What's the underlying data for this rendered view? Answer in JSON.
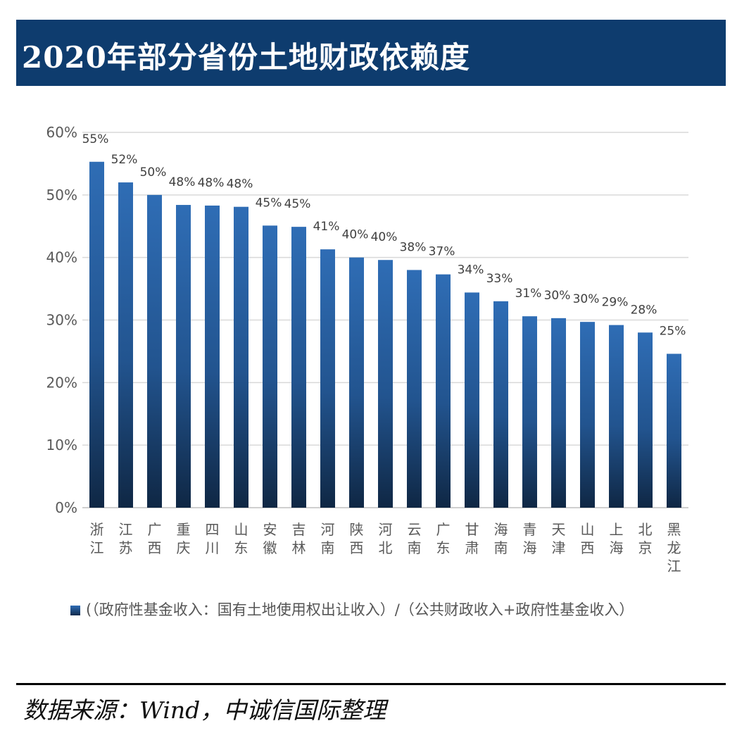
{
  "title": "2020年部分省份土地财政依赖度",
  "chart_data": {
    "type": "bar",
    "title": "2020年部分省份土地财政依赖度",
    "categories": [
      "浙江",
      "江苏",
      "广西",
      "重庆",
      "四川",
      "山东",
      "安徽",
      "吉林",
      "河南",
      "陕西",
      "河北",
      "云南",
      "广东",
      "甘肃",
      "海南",
      "青海",
      "天津",
      "山西",
      "上海",
      "北京",
      "黑龙江"
    ],
    "series": [
      {
        "name": "(（政府性基金收入：国有土地使用权出让收入）/（公共财政收入+政府性基金收入）",
        "values": [
          55.3,
          52.0,
          50.0,
          48.4,
          48.3,
          48.1,
          45.1,
          44.9,
          41.3,
          40.0,
          39.6,
          38.0,
          37.3,
          34.4,
          33.0,
          30.6,
          30.3,
          29.7,
          29.2,
          28.0,
          24.6
        ],
        "labels": [
          "55%",
          "52%",
          "50%",
          "48%",
          "48%",
          "48%",
          "45%",
          "45%",
          "41%",
          "40%",
          "40%",
          "38%",
          "37%",
          "34%",
          "33%",
          "31%",
          "30%",
          "30%",
          "29%",
          "28%",
          "25%"
        ]
      }
    ],
    "ylim": [
      0,
      60
    ],
    "yticks": [
      0,
      10,
      20,
      30,
      40,
      50,
      60
    ],
    "ytick_labels": [
      "0%",
      "10%",
      "20%",
      "30%",
      "40%",
      "50%",
      "60%"
    ],
    "xlabel": "",
    "ylabel": "",
    "grid": true,
    "legend_position": "bottom",
    "colors": {
      "bar_top": "#2f6db5",
      "bar_bottom": "#0f2744",
      "grid": "#d9d9d9",
      "axis": "#bfbfbf",
      "tick_text": "#595959"
    }
  },
  "legend": {
    "label": "(（政府性基金收入：国有土地使用权出让收入）/（公共财政收入+政府性基金收入）"
  },
  "source": "数据来源：Wind，中诚信国际整理",
  "colors": {
    "title_bg": "#0e3c6e",
    "title_text": "#ffffff"
  }
}
